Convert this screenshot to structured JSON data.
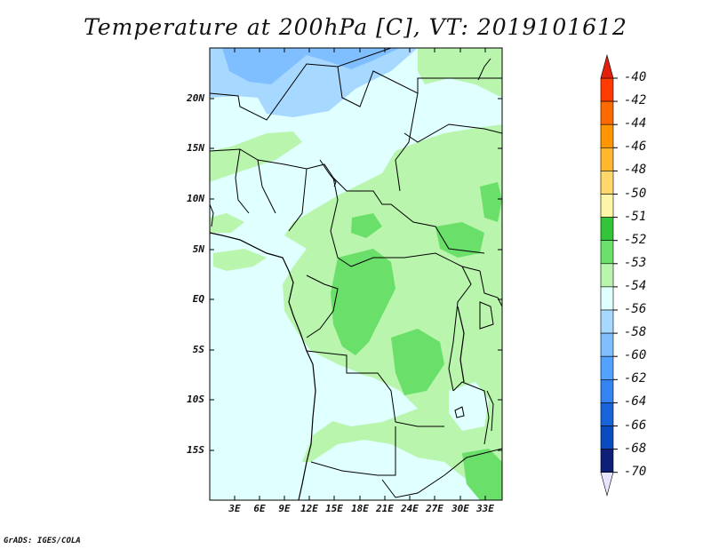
{
  "title": "Temperature at 200hPa [C], VT: 2019101612",
  "footer": "GrADS: IGES/COLA",
  "map": {
    "y_labels": [
      "20N",
      "15N",
      "10N",
      "5N",
      "EQ",
      "5S",
      "10S",
      "15S"
    ],
    "x_labels": [
      "3E",
      "6E",
      "9E",
      "12E",
      "15E",
      "18E",
      "21E",
      "24E",
      "27E",
      "30E",
      "33E"
    ]
  },
  "colorbar": {
    "labels": [
      "-40",
      "-42",
      "-44",
      "-46",
      "-48",
      "-50",
      "-51",
      "-52",
      "-53",
      "-54",
      "-56",
      "-58",
      "-60",
      "-62",
      "-64",
      "-66",
      "-68",
      "-70"
    ],
    "colors": [
      "#ff3b00",
      "#ff6a00",
      "#ff9500",
      "#ffb730",
      "#ffd76a",
      "#fff5a6",
      "#34c43a",
      "#6ae06a",
      "#b9f5ad",
      "#e0ffff",
      "#a7d8ff",
      "#80bfff",
      "#52a2ff",
      "#3383f0",
      "#1764d8",
      "#0a4cbf",
      "#0f1f78"
    ],
    "top_arrow_color": "#e3200d",
    "bottom_arrow_color": "#e8e4ff"
  }
}
